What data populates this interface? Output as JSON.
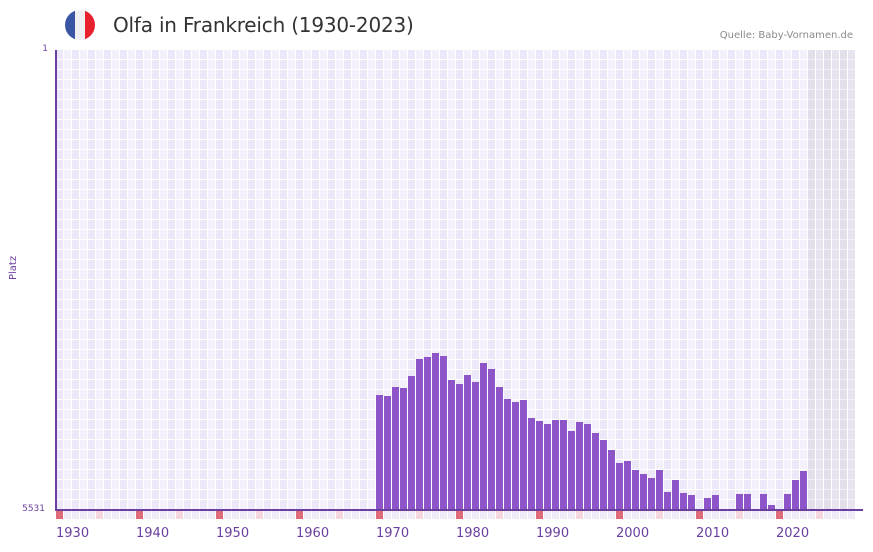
{
  "header": {
    "title": "Olfa in Frankreich (1930-2023)",
    "source": "Quelle: Baby-Vornamen.de",
    "flag_colors": [
      "#3a55a4",
      "#f0f0f2",
      "#e8212e"
    ]
  },
  "colors": {
    "bar": "#8e55c8",
    "axis": "#6b3fa0",
    "decade_marker": "#e06b78",
    "half_decade_marker": "#f5d6de",
    "year_marker": "#efeaf8"
  },
  "chart_data": {
    "type": "bar",
    "title": "Olfa in Frankreich (1930-2023)",
    "xlabel": "",
    "ylabel": "Platz",
    "y_inverted": true,
    "ylim": [
      1,
      5531
    ],
    "y_ticks": [
      "1",
      "5531"
    ],
    "x_range": [
      1930,
      2029
    ],
    "data_range": [
      1930,
      2023
    ],
    "x_ticks": [
      "1930",
      "1940",
      "1950",
      "1960",
      "1970",
      "1980",
      "1990",
      "2000",
      "2010",
      "2020"
    ],
    "grid": true,
    "legend": null,
    "categories": [
      1970,
      1971,
      1972,
      1973,
      1974,
      1975,
      1976,
      1977,
      1978,
      1979,
      1980,
      1981,
      1982,
      1983,
      1984,
      1985,
      1986,
      1987,
      1988,
      1989,
      1990,
      1991,
      1992,
      1993,
      1994,
      1995,
      1996,
      1997,
      1998,
      1999,
      2000,
      2001,
      2002,
      2003,
      2004,
      2005,
      2006,
      2007,
      2008,
      2009,
      2010,
      2011,
      2012,
      2013,
      2014,
      2015,
      2016,
      2017,
      2018,
      2019,
      2020,
      2021,
      2022,
      2023
    ],
    "values": [
      4149,
      4161,
      4053,
      4065,
      3920,
      3716,
      3692,
      3644,
      3680,
      3968,
      4016,
      3908,
      3992,
      3764,
      3836,
      4053,
      4197,
      4233,
      4209,
      4425,
      4461,
      4497,
      4449,
      4449,
      4581,
      4473,
      4497,
      4605,
      4689,
      4810,
      4966,
      4942,
      5050,
      5098,
      5146,
      5050,
      5315,
      5170,
      5327,
      5351,
      null,
      5387,
      5351,
      null,
      null,
      5339,
      5339,
      null,
      5339,
      5471,
      null,
      5339,
      5170,
      5062
    ]
  },
  "axis": {
    "y_label": "Platz",
    "y_top": "1",
    "y_bottom": "5531"
  }
}
